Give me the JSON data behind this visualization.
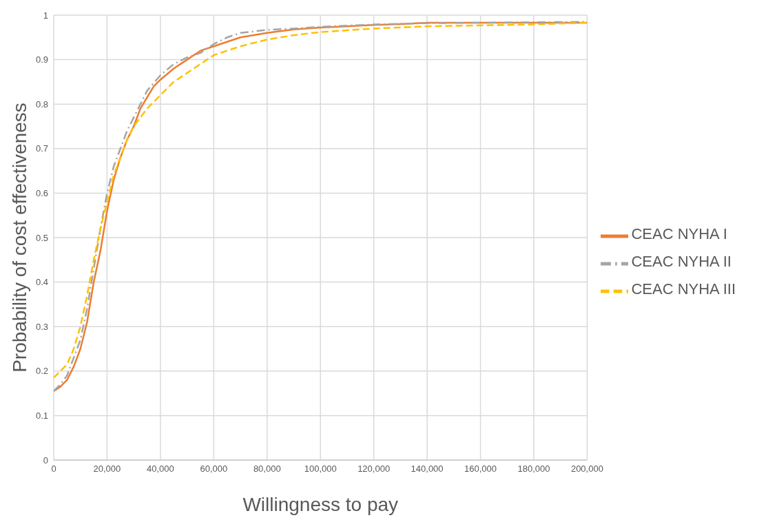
{
  "chart_data": {
    "type": "line",
    "xlabel": "Willingness to pay",
    "ylabel": "Probability of cost effectiveness",
    "xlim": [
      0,
      200000
    ],
    "xticks": [
      0,
      {
        "value": 20000,
        "label": "20,000"
      },
      {
        "value": 40000,
        "label": "40,000"
      },
      {
        "value": 60000,
        "label": "60,000"
      },
      {
        "value": 80000,
        "label": "80,000"
      },
      {
        "value": 100000,
        "label": "100,000"
      },
      {
        "value": 120000,
        "label": "120,000"
      },
      {
        "value": 140000,
        "label": "140,000"
      },
      {
        "value": 160000,
        "label": "160,000"
      },
      {
        "value": 180000,
        "label": "180,000"
      },
      {
        "value": 200000,
        "label": "200,000"
      }
    ],
    "ylim": [
      0,
      1
    ],
    "yticks": [
      0,
      0.1,
      0.2,
      0.3,
      0.4,
      0.5,
      0.6,
      0.7,
      0.8,
      0.9,
      1
    ],
    "grid": true,
    "legend": "right",
    "marker": "none",
    "series": [
      {
        "name": "CEAC NYHA I",
        "color": "#ed7d31",
        "line_style": "solid",
        "x": [
          0,
          2500,
          5000,
          7500,
          10000,
          12500,
          15000,
          17500,
          20000,
          22500,
          25000,
          27500,
          30000,
          32500,
          35000,
          37500,
          40000,
          45000,
          50000,
          55000,
          60000,
          65000,
          70000,
          75000,
          80000,
          90000,
          100000,
          110000,
          120000,
          130000,
          140000,
          160000,
          180000,
          200000
        ],
        "values": [
          0.155,
          0.165,
          0.18,
          0.21,
          0.25,
          0.31,
          0.4,
          0.47,
          0.56,
          0.63,
          0.68,
          0.72,
          0.75,
          0.79,
          0.815,
          0.84,
          0.855,
          0.88,
          0.9,
          0.92,
          0.93,
          0.94,
          0.95,
          0.955,
          0.96,
          0.968,
          0.972,
          0.975,
          0.978,
          0.98,
          0.983,
          0.983,
          0.983,
          0.983
        ]
      },
      {
        "name": "CEAC NYHA II",
        "color": "#a5a5a5",
        "line_style": "dashdot",
        "x": [
          0,
          2500,
          5000,
          7500,
          10000,
          12500,
          15000,
          17500,
          20000,
          22500,
          25000,
          27500,
          30000,
          32500,
          35000,
          40000,
          45000,
          50000,
          55000,
          60000,
          65000,
          70000,
          80000,
          90000,
          100000,
          120000,
          140000,
          160000,
          180000,
          200000
        ],
        "values": [
          0.155,
          0.17,
          0.19,
          0.23,
          0.27,
          0.34,
          0.43,
          0.52,
          0.6,
          0.66,
          0.7,
          0.74,
          0.77,
          0.8,
          0.83,
          0.865,
          0.89,
          0.905,
          0.915,
          0.935,
          0.95,
          0.96,
          0.967,
          0.97,
          0.974,
          0.979,
          0.982,
          0.983,
          0.984,
          0.985
        ]
      },
      {
        "name": "CEAC NYHA III",
        "color": "#ffc000",
        "line_style": "dashed",
        "x": [
          0,
          2500,
          5000,
          7500,
          10000,
          12500,
          15000,
          17500,
          20000,
          22500,
          25000,
          27500,
          30000,
          35000,
          40000,
          45000,
          50000,
          55000,
          60000,
          65000,
          70000,
          80000,
          90000,
          100000,
          120000,
          140000,
          160000,
          180000,
          200000
        ],
        "values": [
          0.185,
          0.2,
          0.215,
          0.25,
          0.3,
          0.37,
          0.45,
          0.52,
          0.58,
          0.64,
          0.68,
          0.72,
          0.75,
          0.79,
          0.82,
          0.85,
          0.87,
          0.89,
          0.91,
          0.92,
          0.93,
          0.945,
          0.955,
          0.962,
          0.97,
          0.975,
          0.977,
          0.979,
          0.983
        ]
      }
    ]
  }
}
